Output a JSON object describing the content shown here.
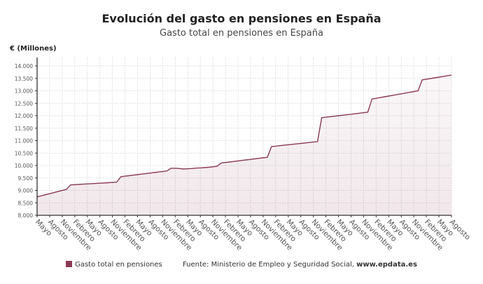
{
  "chart_data": {
    "type": "area",
    "title": "Evolución del gasto en pensiones en España",
    "subtitle": "Gasto total en pensiones en España",
    "ylabel": "€ (Millones)",
    "xlabel": "",
    "ylim": [
      8000,
      14000
    ],
    "y_ticks": [
      "8.000",
      "8.500",
      "9.000",
      "9.500",
      "10.000",
      "10.500",
      "11.000",
      "11.500",
      "12.000",
      "12.500",
      "13.000",
      "13.500",
      "14.000"
    ],
    "x_tick_labels": [
      "Mayo",
      "Agosto",
      "Noviembre",
      "Febrero",
      "Mayo",
      "Agosto",
      "Noviembre",
      "Febrero",
      "Mayo",
      "Agosto",
      "Noviembre",
      "Febrero",
      "Mayo",
      "Agosto",
      "Noviembre",
      "Febrero",
      "Mayo",
      "Agosto",
      "Noviembre",
      "Febrero",
      "Mayo",
      "Agosto",
      "Noviembre",
      "Febrero",
      "Mayo",
      "Agosto",
      "Noviembre",
      "Febrero",
      "Mayo",
      "Agosto",
      "Noviembre",
      "Febrero",
      "Mayo",
      "Agosto"
    ],
    "x_tick_every_months": 3,
    "grid": true,
    "legend_position": "bottom",
    "series": [
      {
        "name": "Gasto total en pensiones",
        "color": "#8b3a55",
        "values": [
          8740,
          8783,
          8826,
          8869,
          8911,
          8954,
          8997,
          9040,
          9220,
          9230,
          9240,
          9250,
          9260,
          9270,
          9280,
          9290,
          9300,
          9310,
          9320,
          9330,
          9550,
          9571,
          9592,
          9613,
          9634,
          9655,
          9675,
          9696,
          9717,
          9738,
          9759,
          9780,
          9890,
          9890,
          9880,
          9860,
          9870,
          9880,
          9895,
          9905,
          9915,
          9930,
          9950,
          9970,
          10100,
          10121,
          10142,
          10163,
          10184,
          10205,
          10225,
          10246,
          10267,
          10288,
          10309,
          10330,
          10760,
          10778,
          10796,
          10815,
          10833,
          10851,
          10869,
          10887,
          10905,
          10924,
          10942,
          10960,
          11920,
          11940,
          11960,
          11980,
          12000,
          12020,
          12040,
          12060,
          12080,
          12100,
          12120,
          12140,
          12670,
          12700,
          12730,
          12760,
          12790,
          12820,
          12850,
          12880,
          12910,
          12940,
          12970,
          13000,
          13440,
          13467,
          13494,
          13521,
          13548,
          13575,
          13602,
          13630
        ]
      }
    ]
  },
  "legend": {
    "series_label": "Gasto total en pensiones",
    "source_prefix": "Fuente: Ministerio de Empleo y Seguridad Social,",
    "source_site": "www.epdata.es"
  }
}
